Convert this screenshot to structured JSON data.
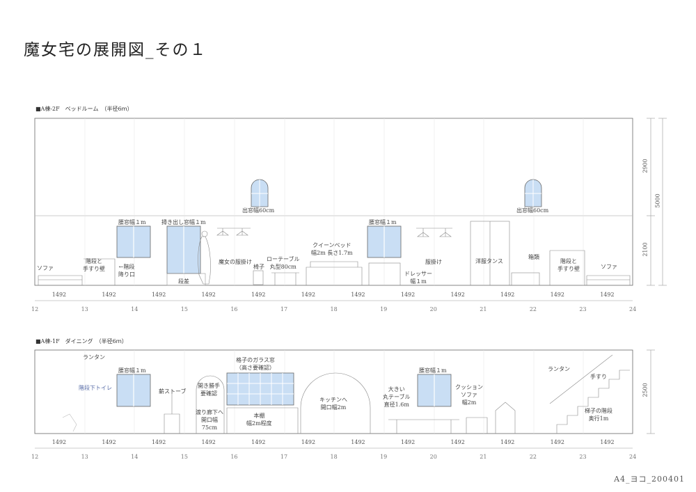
{
  "title": "魔女宅の展開図_その１",
  "footer_code": "A4_ヨコ_200401",
  "sections": [
    {
      "heading": "■A棟-2F　ベッドルーム　（半径6ｍ）",
      "labels": {
        "sofa_left": "ソファ",
        "stair_rail_left": [
          "階段と",
          "手すり壁"
        ],
        "stair_entry": [
          "←階段",
          "降り口"
        ],
        "window1": "腰窓幅１m",
        "bay_window": "掃き出し窓幅１m",
        "step": "段差",
        "witch_clothes": "魔女の服掛け",
        "chair": "椅子",
        "low_table": [
          "ローテーブル",
          "丸型80cm"
        ],
        "queen_bed": [
          "クイーンベッド",
          "幅2m 長さ1.7m"
        ],
        "window2": "腰窓幅１m",
        "dresser": [
          "ドレッサー",
          "幅１m"
        ],
        "clothes_rack": "服掛け",
        "wardrobe": "洋服タンス",
        "boxes": "箱類",
        "stair_rail_right": [
          "階段と",
          "手すり壁"
        ],
        "sofa_right": "ソファ",
        "dormer_left": "出窓幅60cm",
        "dormer_right": "出窓幅60cm"
      },
      "dims_right": [
        "2900",
        "5000",
        "2100"
      ],
      "spans": [
        "1492",
        "1492",
        "1492",
        "1492",
        "1492",
        "1492",
        "1492",
        "1492",
        "1492",
        "1492",
        "1492",
        "1492"
      ],
      "grid_numbers": [
        "12",
        "13",
        "14",
        "15",
        "16",
        "17",
        "18",
        "19",
        "20",
        "21",
        "22",
        "23",
        "24"
      ]
    },
    {
      "heading": "■A棟-1F　ダイニング　（半径6ｍ）",
      "labels": {
        "lantern_left": "ランタン",
        "under_stair_toilet": "階段下トイレ",
        "window1": "腰窓幅１m",
        "wood_stove": "薪ストーブ",
        "sliding_door": [
          "開き勝手",
          "要確認"
        ],
        "corridor": [
          "渡り廊下へ",
          "開口幅",
          "75cm"
        ],
        "lattice_window": [
          "格子のガラス窓",
          "（高さ要確認）"
        ],
        "bookshelf": [
          "本棚",
          "幅2m程度"
        ],
        "to_kitchen": [
          "キッチンへ",
          "開口幅2m"
        ],
        "big_table": [
          "大きい",
          "丸テーブル",
          "直径1.6m"
        ],
        "window2": "腰窓幅１m",
        "cushion_sofa": [
          "クッション",
          "ソファ",
          "幅2m"
        ],
        "lantern_right": "ランタン",
        "handrail": "手すり",
        "ladder_stair": [
          "梯子の階段",
          "奥行1m"
        ]
      },
      "dims_right": [
        "2500"
      ],
      "spans": [
        "1492",
        "1492",
        "1492",
        "1492",
        "1492",
        "1492",
        "1492",
        "1492",
        "1492",
        "1492",
        "1492",
        "1492"
      ],
      "grid_numbers": [
        "12",
        "13",
        "14",
        "15",
        "16",
        "17",
        "18",
        "19",
        "20",
        "21",
        "22",
        "23",
        "24"
      ]
    }
  ],
  "colors": {
    "glass": "#c9def4",
    "line": "#666666",
    "light_line": "#cccccc"
  }
}
